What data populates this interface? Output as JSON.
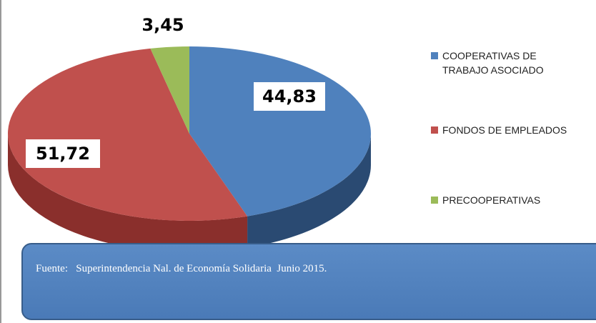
{
  "chart_data": {
    "type": "pie",
    "categories": [
      "COOPERATIVAS DE TRABAJO ASOCIADO",
      "FONDOS DE EMPLEADOS",
      "PRECOOPERATIVAS"
    ],
    "values": [
      44.83,
      51.72,
      3.45
    ],
    "value_labels": [
      "44,83",
      "51,72",
      "3,45"
    ],
    "colors": [
      "#4f81bd",
      "#c0504d",
      "#9bbb59"
    ],
    "legend": "right",
    "source": "Fuente:   Superintendencia Nal. de Economía Solidaria  Junio 2015."
  }
}
